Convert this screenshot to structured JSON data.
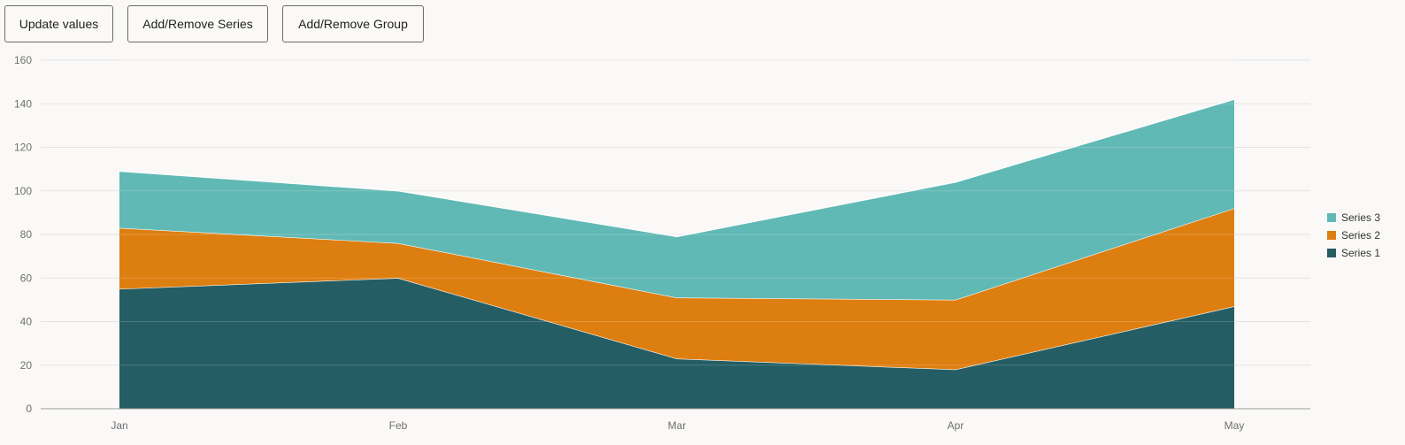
{
  "toolbar": {
    "update_label": "Update values",
    "series_label": "Add/Remove Series",
    "group_label": "Add/Remove Group"
  },
  "colors": {
    "series_1": "#245d63",
    "series_2": "#dd7e11",
    "series_3": "#61b9b5",
    "grid": "#e4e4e4",
    "axis": "#9a9a9a"
  },
  "chart_data": {
    "type": "area",
    "stacked": true,
    "categories": [
      "Jan",
      "Feb",
      "Mar",
      "Apr",
      "May"
    ],
    "series": [
      {
        "name": "Series 1",
        "values": [
          55,
          60,
          23,
          18,
          47
        ]
      },
      {
        "name": "Series 2",
        "values": [
          28,
          16,
          28,
          32,
          45
        ]
      },
      {
        "name": "Series 3",
        "values": [
          26,
          24,
          28,
          54,
          50
        ]
      }
    ],
    "y_ticks": [
      0,
      20,
      40,
      60,
      80,
      100,
      120,
      140,
      160
    ],
    "ylim": [
      0,
      160
    ],
    "grid": true,
    "legend_position": "right",
    "legend_order": [
      "Series 3",
      "Series 2",
      "Series 1"
    ],
    "title": "",
    "xlabel": "",
    "ylabel": ""
  }
}
